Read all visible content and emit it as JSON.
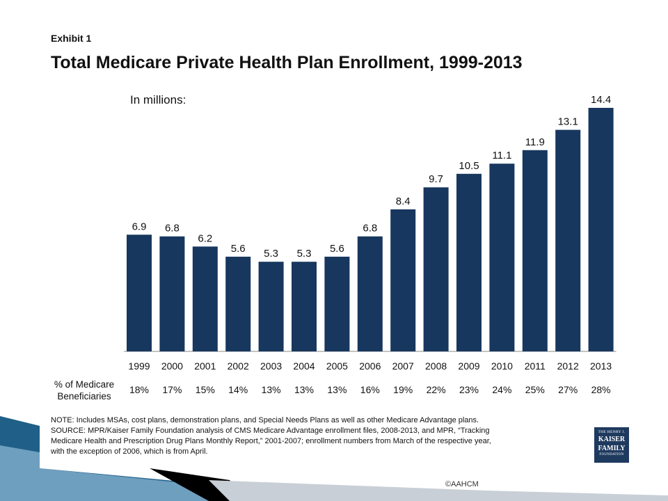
{
  "slide": {
    "copyright": "©AAHCM",
    "accent_colors": [
      "#0b4a6e",
      "#1f5f88",
      "#000000",
      "#9aa3ad"
    ]
  },
  "exhibit_label": "Exhibit 1",
  "chart_data": {
    "type": "bar",
    "title": "Total Medicare Private Health Plan Enrollment, 1999-2013",
    "subtitle": "In millions:",
    "xlabel": "",
    "ylabel": "",
    "categories": [
      "1999",
      "2000",
      "2001",
      "2002",
      "2003",
      "2004",
      "2005",
      "2006",
      "2007",
      "2008",
      "2009",
      "2010",
      "2011",
      "2012",
      "2013"
    ],
    "values": [
      6.9,
      6.8,
      6.2,
      5.6,
      5.3,
      5.3,
      5.6,
      6.8,
      8.4,
      9.7,
      10.5,
      11.1,
      11.9,
      13.1,
      14.4
    ],
    "value_labels": [
      "6.9",
      "6.8",
      "6.2",
      "5.6",
      "5.3",
      "5.3",
      "5.6",
      "6.8",
      "8.4",
      "9.7",
      "10.5",
      "11.1",
      "11.9",
      "13.1",
      "14.4"
    ],
    "ylim": [
      0,
      14.4
    ],
    "bar_color": "#17375e",
    "grid": false,
    "legend": "none",
    "secondary_row": {
      "label": "% of Medicare Beneficiaries",
      "values": [
        "18%",
        "17%",
        "15%",
        "14%",
        "13%",
        "13%",
        "13%",
        "16%",
        "19%",
        "22%",
        "23%",
        "24%",
        "25%",
        "27%",
        "28%"
      ]
    }
  },
  "notes": [
    "NOTE:  Includes MSAs, cost plans, demonstration plans, and Special Needs Plans as well as other Medicare Advantage plans.",
    "SOURCE:  MPR/Kaiser Family Foundation analysis of CMS Medicare Advantage enrollment files, 2008-2013, and MPR, “Tracking",
    "Medicare Health and Prescription Drug Plans Monthly Report,” 2001-2007; enrollment numbers from March of the respective year,",
    "with the exception of 2006, which is from April."
  ],
  "logo": {
    "line1": "THE HENRY J.",
    "line2a": "KAISER",
    "line2b": "FAMILY",
    "line3": "FOUNDATION",
    "color": "#1f3a5f"
  }
}
